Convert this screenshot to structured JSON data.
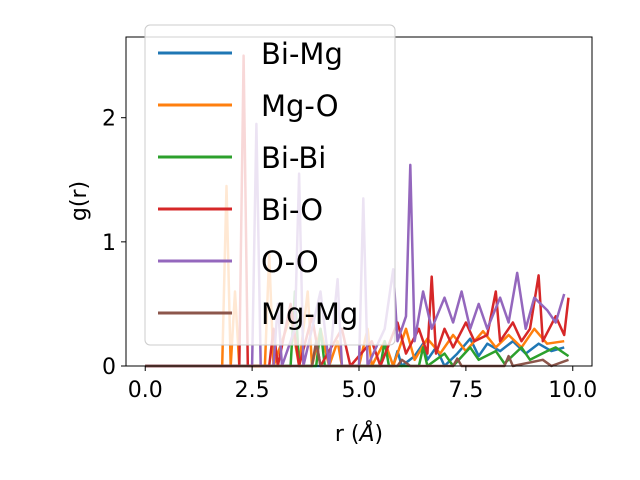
{
  "chart_data": {
    "type": "line",
    "title": "",
    "xlabel": "r (",
    "xlabel_unit": "Å",
    "xlabel_close": ")",
    "ylabel": "g(r)",
    "xlim": [
      -0.45,
      10.45
    ],
    "ylim": [
      0,
      2.65
    ],
    "xticks": [
      0.0,
      2.5,
      5.0,
      7.5,
      10.0
    ],
    "xtick_labels": [
      "0.0",
      "2.5",
      "5.0",
      "7.5",
      "10.0"
    ],
    "yticks": [
      0,
      1,
      2
    ],
    "ytick_labels": [
      "0",
      "1",
      "2"
    ],
    "grid": false,
    "legend_position": "top-left",
    "series": [
      {
        "name": "Bi-Mg",
        "color": "#1f77b4",
        "points": [
          [
            0,
            0
          ],
          [
            5.8,
            0
          ],
          [
            5.9,
            0.12
          ],
          [
            6.0,
            0
          ],
          [
            6.3,
            0.08
          ],
          [
            6.5,
            0.18
          ],
          [
            6.6,
            0.05
          ],
          [
            6.8,
            0.15
          ],
          [
            7.0,
            0
          ],
          [
            7.3,
            0.1
          ],
          [
            7.6,
            0.22
          ],
          [
            7.8,
            0.08
          ],
          [
            8.0,
            0.18
          ],
          [
            8.3,
            0.12
          ],
          [
            8.6,
            0.2
          ],
          [
            8.9,
            0.1
          ],
          [
            9.2,
            0.18
          ],
          [
            9.5,
            0.12
          ],
          [
            9.8,
            0.15
          ]
        ]
      },
      {
        "name": "Mg-O",
        "color": "#ff7f0e",
        "points": [
          [
            0,
            0
          ],
          [
            1.8,
            0
          ],
          [
            1.9,
            1.45
          ],
          [
            2.0,
            0
          ],
          [
            2.1,
            0.6
          ],
          [
            2.2,
            0
          ],
          [
            2.8,
            0
          ],
          [
            2.9,
            0.9
          ],
          [
            3.0,
            0
          ],
          [
            3.4,
            0.4
          ],
          [
            3.6,
            0
          ],
          [
            3.8,
            0.6
          ],
          [
            3.9,
            0
          ],
          [
            4.1,
            0.3
          ],
          [
            4.3,
            0
          ],
          [
            4.5,
            0.2
          ],
          [
            4.6,
            0
          ],
          [
            5.0,
            0
          ],
          [
            5.2,
            0.3
          ],
          [
            5.3,
            0
          ],
          [
            5.6,
            0.2
          ],
          [
            5.8,
            0
          ],
          [
            6.1,
            0.3
          ],
          [
            6.3,
            0.05
          ],
          [
            6.6,
            0.22
          ],
          [
            6.9,
            0.1
          ],
          [
            7.2,
            0.25
          ],
          [
            7.5,
            0.12
          ],
          [
            7.9,
            0.28
          ],
          [
            8.2,
            0.15
          ],
          [
            8.5,
            0.25
          ],
          [
            8.8,
            0.15
          ],
          [
            9.1,
            0.3
          ],
          [
            9.4,
            0.18
          ],
          [
            9.8,
            0.2
          ]
        ]
      },
      {
        "name": "Bi-Bi",
        "color": "#2ca02c",
        "points": [
          [
            0,
            0
          ],
          [
            3.4,
            0
          ],
          [
            3.5,
            0.6
          ],
          [
            3.6,
            0
          ],
          [
            4.0,
            0
          ],
          [
            4.1,
            0.3
          ],
          [
            4.2,
            0
          ],
          [
            5.5,
            0
          ],
          [
            5.6,
            0.2
          ],
          [
            5.7,
            0
          ],
          [
            6.4,
            0
          ],
          [
            6.5,
            0.15
          ],
          [
            6.6,
            0
          ],
          [
            7.0,
            0.1
          ],
          [
            7.2,
            0
          ],
          [
            7.6,
            0.15
          ],
          [
            7.8,
            0.05
          ],
          [
            8.2,
            0.12
          ],
          [
            8.4,
            0.02
          ],
          [
            8.8,
            0.15
          ],
          [
            9.0,
            0.05
          ],
          [
            9.4,
            0.12
          ],
          [
            9.6,
            0.15
          ],
          [
            9.9,
            0.08
          ]
        ]
      },
      {
        "name": "Bi-O",
        "color": "#d62728",
        "points": [
          [
            0,
            0
          ],
          [
            2.2,
            0
          ],
          [
            2.3,
            2.5
          ],
          [
            2.4,
            0
          ],
          [
            2.9,
            0
          ],
          [
            3.0,
            0.3
          ],
          [
            3.1,
            0
          ],
          [
            3.4,
            0.5
          ],
          [
            3.6,
            0
          ],
          [
            3.9,
            0.4
          ],
          [
            4.1,
            0
          ],
          [
            4.6,
            0.3
          ],
          [
            4.8,
            0
          ],
          [
            5.3,
            0.2
          ],
          [
            5.5,
            0
          ],
          [
            5.9,
            0.35
          ],
          [
            6.1,
            0.1
          ],
          [
            6.4,
            0.3
          ],
          [
            6.6,
            0.1
          ],
          [
            6.7,
            0.72
          ],
          [
            6.8,
            0.1
          ],
          [
            7.0,
            0.3
          ],
          [
            7.2,
            0.15
          ],
          [
            7.5,
            0.35
          ],
          [
            7.7,
            0.2
          ],
          [
            8.0,
            0.25
          ],
          [
            8.2,
            0.6
          ],
          [
            8.3,
            0.2
          ],
          [
            8.6,
            0.35
          ],
          [
            8.8,
            0.2
          ],
          [
            9.0,
            0.3
          ],
          [
            9.2,
            0.73
          ],
          [
            9.3,
            0.2
          ],
          [
            9.6,
            0.4
          ],
          [
            9.8,
            0.25
          ],
          [
            9.9,
            0.55
          ]
        ]
      },
      {
        "name": "O-O",
        "color": "#9467bd",
        "points": [
          [
            0,
            0
          ],
          [
            2.5,
            0
          ],
          [
            2.6,
            1.95
          ],
          [
            2.7,
            0
          ],
          [
            3.0,
            0
          ],
          [
            3.1,
            0.5
          ],
          [
            3.2,
            0
          ],
          [
            3.5,
            0.3
          ],
          [
            3.6,
            1.55
          ],
          [
            3.7,
            0
          ],
          [
            4.1,
            0.6
          ],
          [
            4.3,
            0
          ],
          [
            4.5,
            0.7
          ],
          [
            4.6,
            0
          ],
          [
            5.0,
            0
          ],
          [
            5.1,
            1.35
          ],
          [
            5.2,
            0
          ],
          [
            5.6,
            0.3
          ],
          [
            5.8,
            0.78
          ],
          [
            5.9,
            0.2
          ],
          [
            6.1,
            0.4
          ],
          [
            6.2,
            1.62
          ],
          [
            6.3,
            0.2
          ],
          [
            6.5,
            0.6
          ],
          [
            6.7,
            0.3
          ],
          [
            7.0,
            0.55
          ],
          [
            7.2,
            0.35
          ],
          [
            7.4,
            0.6
          ],
          [
            7.6,
            0.3
          ],
          [
            7.8,
            0.5
          ],
          [
            8.0,
            0.3
          ],
          [
            8.3,
            0.55
          ],
          [
            8.5,
            0.35
          ],
          [
            8.7,
            0.75
          ],
          [
            8.9,
            0.3
          ],
          [
            9.1,
            0.55
          ],
          [
            9.4,
            0.45
          ],
          [
            9.6,
            0.35
          ],
          [
            9.8,
            0.58
          ]
        ]
      },
      {
        "name": "Mg-Mg",
        "color": "#8c564b",
        "points": [
          [
            0,
            0
          ],
          [
            3.9,
            0
          ],
          [
            4.0,
            0.2
          ],
          [
            4.1,
            0
          ],
          [
            5.9,
            0
          ],
          [
            6.0,
            0.05
          ],
          [
            6.2,
            0
          ],
          [
            7.2,
            0
          ],
          [
            7.3,
            0.06
          ],
          [
            7.4,
            0
          ],
          [
            8.4,
            0
          ],
          [
            8.5,
            0.08
          ],
          [
            8.6,
            0
          ],
          [
            9.3,
            0.05
          ],
          [
            9.5,
            0
          ],
          [
            9.9,
            0.05
          ]
        ]
      }
    ]
  }
}
